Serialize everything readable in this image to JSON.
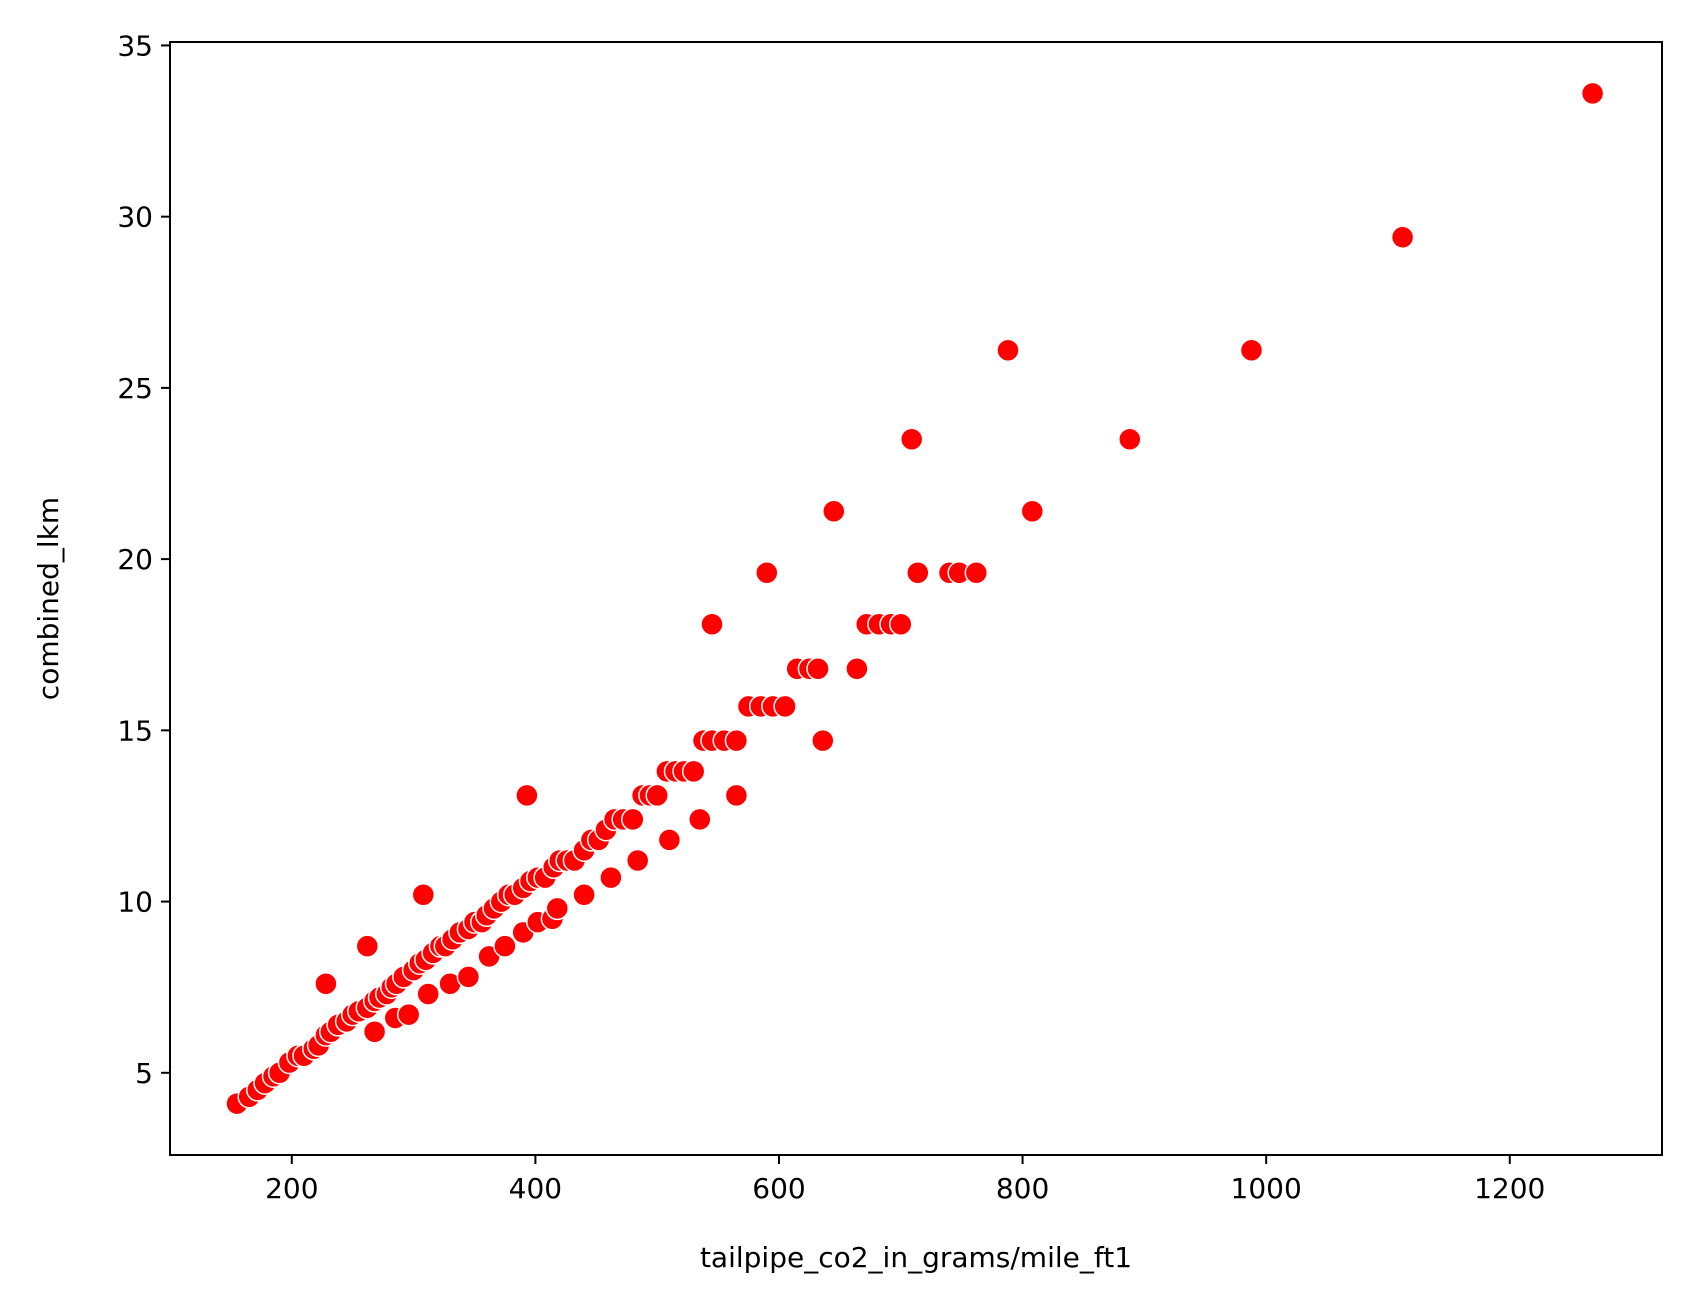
{
  "chart_data": {
    "type": "scatter",
    "title": "",
    "xlabel": "tailpipe_co2_in_grams/mile_ft1",
    "ylabel": "combined_lkm",
    "xlim": [
      100,
      1325
    ],
    "ylim": [
      2.6,
      35.1
    ],
    "xticks": [
      200,
      400,
      600,
      800,
      1000,
      1200
    ],
    "yticks": [
      5,
      10,
      15,
      20,
      25,
      30,
      35
    ],
    "xtick_labels": [
      "200",
      "400",
      "600",
      "800",
      "1000",
      "1200"
    ],
    "ytick_labels": [
      "5",
      "10",
      "15",
      "20",
      "25",
      "30",
      "35"
    ],
    "grid": false,
    "marker_color": "#ff0000",
    "marker_edge_color": "#ffffff",
    "series": [
      {
        "name": "points",
        "points": [
          [
            155,
            4.1
          ],
          [
            165,
            4.3
          ],
          [
            172,
            4.5
          ],
          [
            178,
            4.7
          ],
          [
            185,
            4.9
          ],
          [
            190,
            5.0
          ],
          [
            198,
            5.3
          ],
          [
            205,
            5.5
          ],
          [
            210,
            5.5
          ],
          [
            218,
            5.7
          ],
          [
            222,
            5.8
          ],
          [
            228,
            6.1
          ],
          [
            232,
            6.2
          ],
          [
            238,
            6.4
          ],
          [
            245,
            6.5
          ],
          [
            250,
            6.7
          ],
          [
            255,
            6.8
          ],
          [
            262,
            6.9
          ],
          [
            268,
            7.1
          ],
          [
            272,
            7.2
          ],
          [
            278,
            7.3
          ],
          [
            282,
            7.5
          ],
          [
            286,
            7.6
          ],
          [
            292,
            7.8
          ],
          [
            300,
            8.0
          ],
          [
            305,
            8.2
          ],
          [
            310,
            8.3
          ],
          [
            316,
            8.5
          ],
          [
            322,
            8.7
          ],
          [
            326,
            8.7
          ],
          [
            332,
            8.9
          ],
          [
            338,
            9.1
          ],
          [
            345,
            9.2
          ],
          [
            350,
            9.4
          ],
          [
            356,
            9.4
          ],
          [
            360,
            9.6
          ],
          [
            366,
            9.8
          ],
          [
            372,
            10.0
          ],
          [
            378,
            10.2
          ],
          [
            383,
            10.2
          ],
          [
            390,
            10.4
          ],
          [
            396,
            10.6
          ],
          [
            402,
            10.7
          ],
          [
            408,
            10.7
          ],
          [
            415,
            11.0
          ],
          [
            420,
            11.2
          ],
          [
            426,
            11.2
          ],
          [
            432,
            11.2
          ],
          [
            440,
            11.5
          ],
          [
            446,
            11.8
          ],
          [
            452,
            11.8
          ],
          [
            458,
            12.1
          ],
          [
            465,
            12.4
          ],
          [
            472,
            12.4
          ],
          [
            480,
            12.4
          ],
          [
            488,
            13.1
          ],
          [
            494,
            13.1
          ],
          [
            500,
            13.1
          ],
          [
            508,
            13.8
          ],
          [
            515,
            13.8
          ],
          [
            522,
            13.8
          ],
          [
            530,
            13.8
          ],
          [
            538,
            14.7
          ],
          [
            545,
            14.7
          ],
          [
            555,
            14.7
          ],
          [
            565,
            14.7
          ],
          [
            575,
            15.7
          ],
          [
            585,
            15.7
          ],
          [
            595,
            15.7
          ],
          [
            605,
            15.7
          ],
          [
            615,
            16.8
          ],
          [
            625,
            16.8
          ],
          [
            632,
            16.8
          ],
          [
            672,
            18.1
          ],
          [
            682,
            18.1
          ],
          [
            692,
            18.1
          ],
          [
            700,
            18.1
          ],
          [
            740,
            19.6
          ],
          [
            748,
            19.6
          ],
          [
            228,
            7.6
          ],
          [
            262,
            8.7
          ],
          [
            308,
            10.2
          ],
          [
            393,
            13.1
          ],
          [
            545,
            18.1
          ],
          [
            590,
            19.6
          ],
          [
            645,
            21.4
          ],
          [
            709,
            23.5
          ],
          [
            788,
            26.1
          ],
          [
            268,
            6.2
          ],
          [
            285,
            6.6
          ],
          [
            296,
            6.7
          ],
          [
            312,
            7.3
          ],
          [
            330,
            7.6
          ],
          [
            345,
            7.8
          ],
          [
            362,
            8.4
          ],
          [
            375,
            8.7
          ],
          [
            390,
            9.1
          ],
          [
            402,
            9.4
          ],
          [
            414,
            9.5
          ],
          [
            418,
            9.8
          ],
          [
            440,
            10.2
          ],
          [
            462,
            10.7
          ],
          [
            484,
            11.2
          ],
          [
            510,
            11.8
          ],
          [
            535,
            12.4
          ],
          [
            565,
            13.1
          ],
          [
            636,
            14.7
          ],
          [
            664,
            16.8
          ],
          [
            714,
            19.6
          ],
          [
            762,
            19.6
          ],
          [
            808,
            21.4
          ],
          [
            888,
            23.5
          ],
          [
            988,
            26.1
          ],
          [
            1112,
            29.4
          ],
          [
            1268,
            33.6
          ]
        ]
      }
    ]
  }
}
